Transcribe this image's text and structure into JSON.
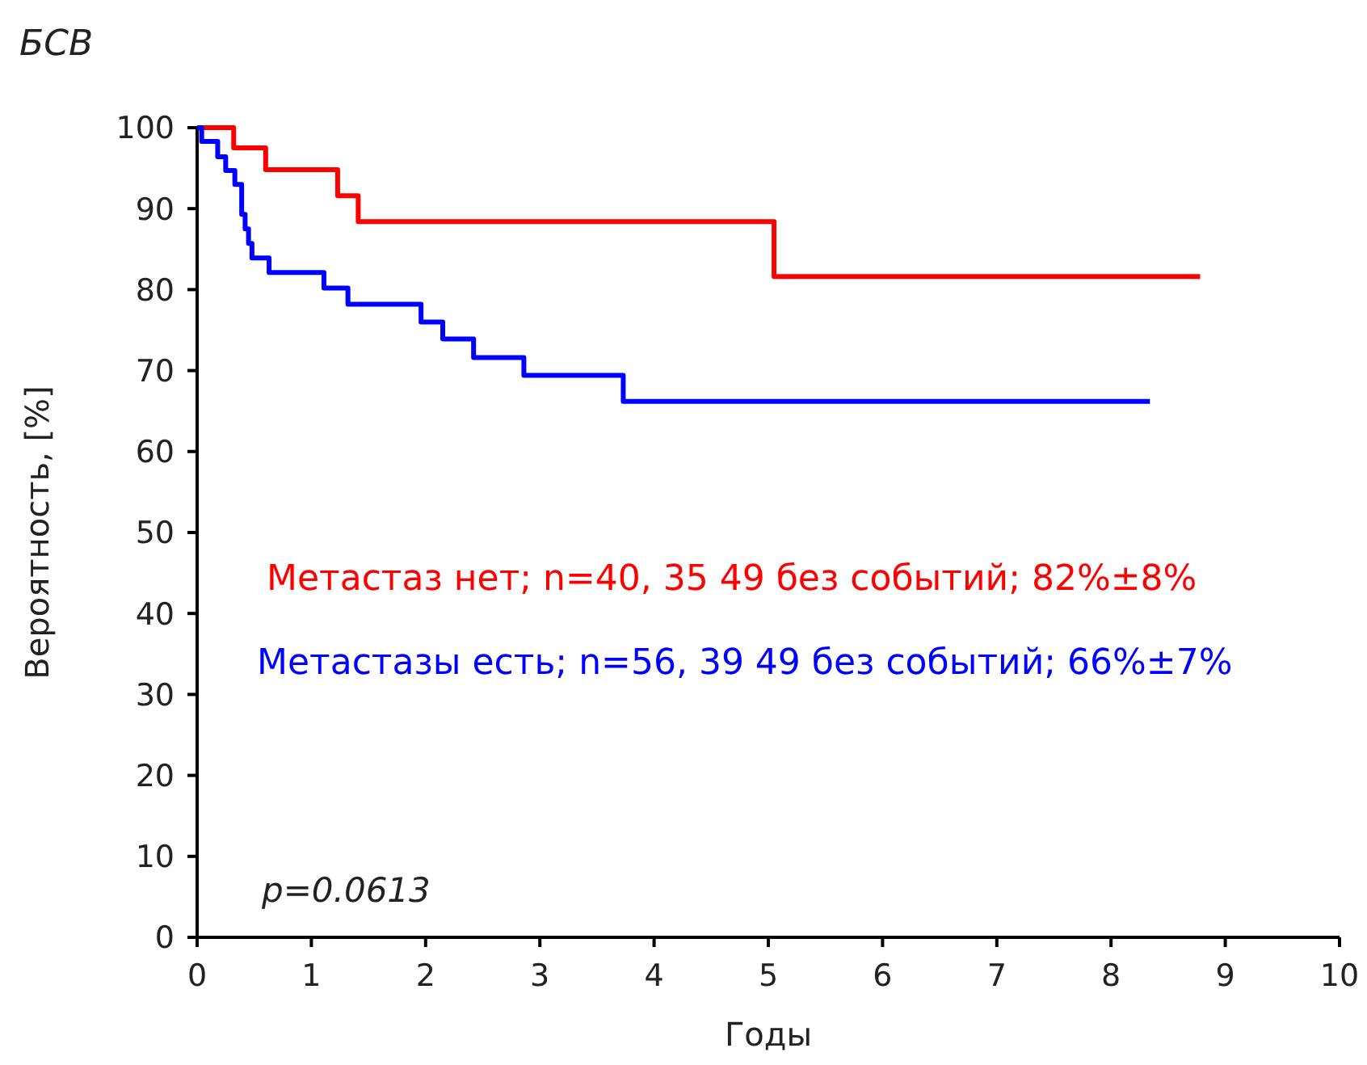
{
  "chart_data": {
    "type": "step",
    "title": "БСВ",
    "xlabel": "Годы",
    "ylabel": "Вероятность, [%]",
    "xlim": [
      0,
      10
    ],
    "ylim": [
      0,
      100
    ],
    "xticks": [
      0,
      1,
      2,
      3,
      4,
      5,
      6,
      7,
      8,
      9,
      10
    ],
    "yticks": [
      0,
      10,
      20,
      30,
      40,
      50,
      60,
      70,
      80,
      90,
      100
    ],
    "grid": false,
    "series": [
      {
        "name": "Метастаз нет; n=40, 35 49 без событий; 82%±8%",
        "color": "#ff0000",
        "x": [
          0,
          0.32,
          0.6,
          1.23,
          1.41,
          5.05,
          8.78
        ],
        "values": [
          100,
          97.5,
          94.8,
          91.6,
          88.4,
          81.6,
          81.6
        ]
      },
      {
        "name": "Метастазы есть; n=56, 39 49 без событий; 66%±7%",
        "color": "#0000ff",
        "x": [
          0,
          0.04,
          0.18,
          0.25,
          0.33,
          0.39,
          0.42,
          0.45,
          0.48,
          0.63,
          1.11,
          1.32,
          1.96,
          2.15,
          2.42,
          2.86,
          3.73,
          8.34
        ],
        "values": [
          100,
          98.3,
          96.4,
          94.7,
          93,
          89.3,
          87.5,
          85.7,
          83.9,
          82.1,
          80.2,
          78.2,
          76,
          73.9,
          71.6,
          69.4,
          66.2,
          66.2
        ]
      }
    ],
    "annotations": [
      "p=0.0613"
    ]
  }
}
